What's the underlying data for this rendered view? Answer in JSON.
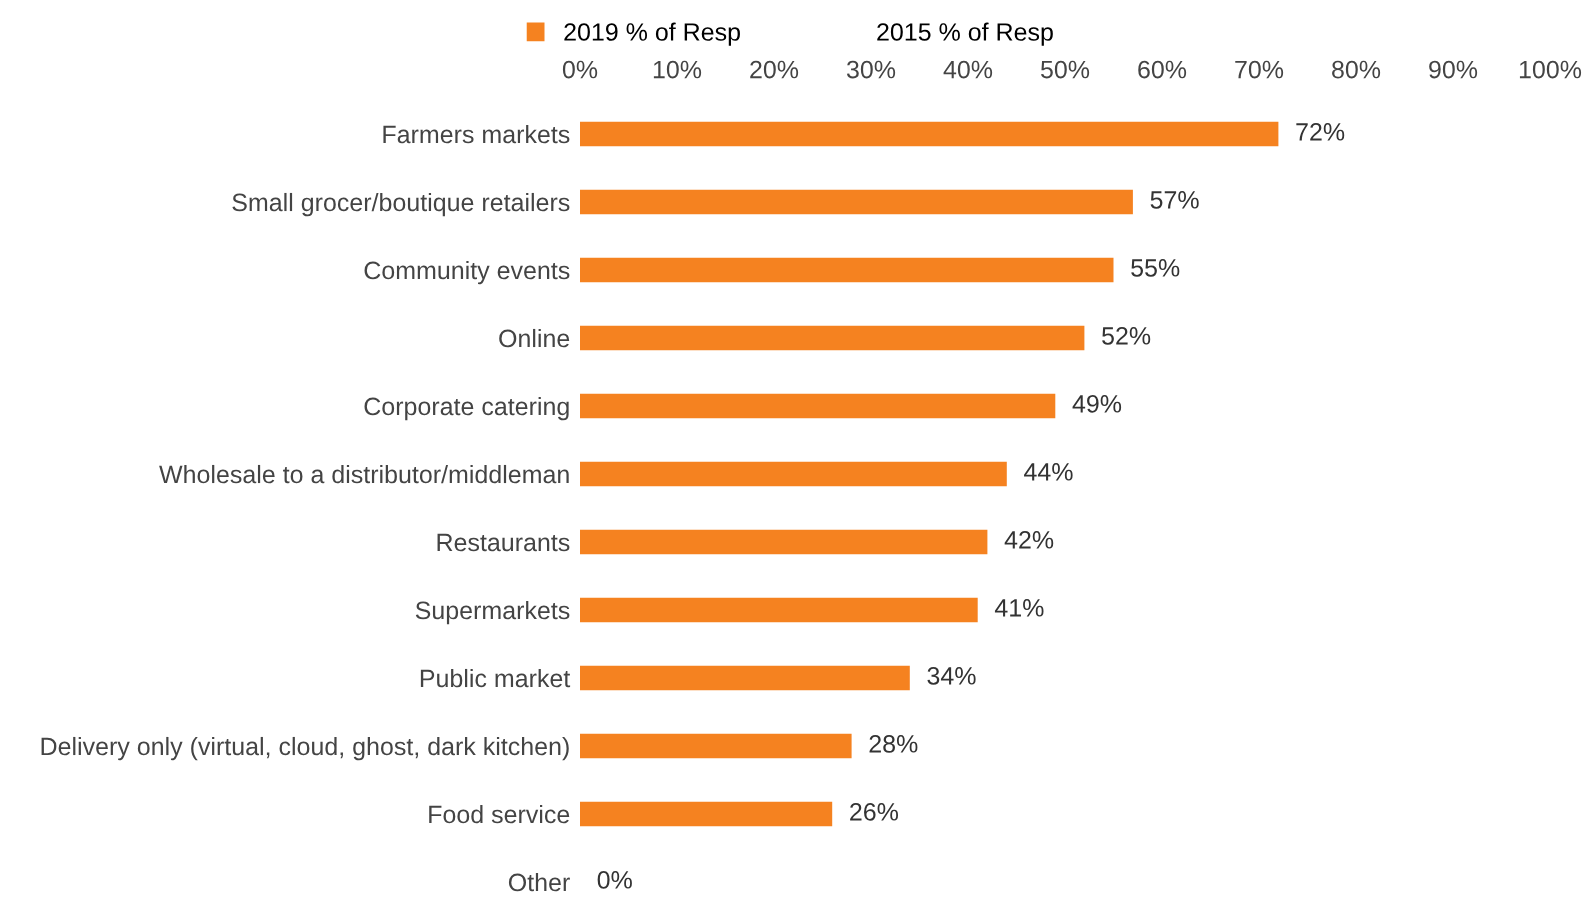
{
  "chart_data": {
    "type": "bar",
    "orientation": "horizontal",
    "categories": [
      "Farmers markets",
      "Small grocer/boutique retailers",
      "Community events",
      "Online",
      "Corporate catering",
      "Wholesale to a distributor/middleman",
      "Restaurants",
      "Supermarkets",
      "Public market",
      "Delivery only (virtual, cloud, ghost, dark kitchen)",
      "Food service",
      "Other"
    ],
    "series": [
      {
        "name": "2019 % of Resp",
        "color": "#f58220",
        "values": [
          72,
          57,
          55,
          52,
          49,
          44,
          42,
          41,
          34,
          28,
          26,
          0
        ]
      },
      {
        "name": "2015 % of Resp",
        "values": [
          null,
          null,
          null,
          null,
          null,
          null,
          null,
          null,
          null,
          null,
          null,
          null
        ]
      }
    ],
    "xlim": [
      0,
      100
    ],
    "xticks": [
      {
        "value": 0,
        "label": "0%"
      },
      {
        "value": 10,
        "label": "10%"
      },
      {
        "value": 20,
        "label": "20%"
      },
      {
        "value": 30,
        "label": "30%"
      },
      {
        "value": 40,
        "label": "40%"
      },
      {
        "value": 50,
        "label": "50%"
      },
      {
        "value": 60,
        "label": "60%"
      },
      {
        "value": 70,
        "label": "70%"
      },
      {
        "value": 80,
        "label": "80%"
      },
      {
        "value": 90,
        "label": "90%"
      },
      {
        "value": 100,
        "label": "100%"
      }
    ],
    "value_labels": [
      "72%",
      "57%",
      "55%",
      "52%",
      "49%",
      "44%",
      "42%",
      "41%",
      "34%",
      "28%",
      "26%",
      "0%"
    ],
    "grid": false,
    "legend": "top"
  }
}
